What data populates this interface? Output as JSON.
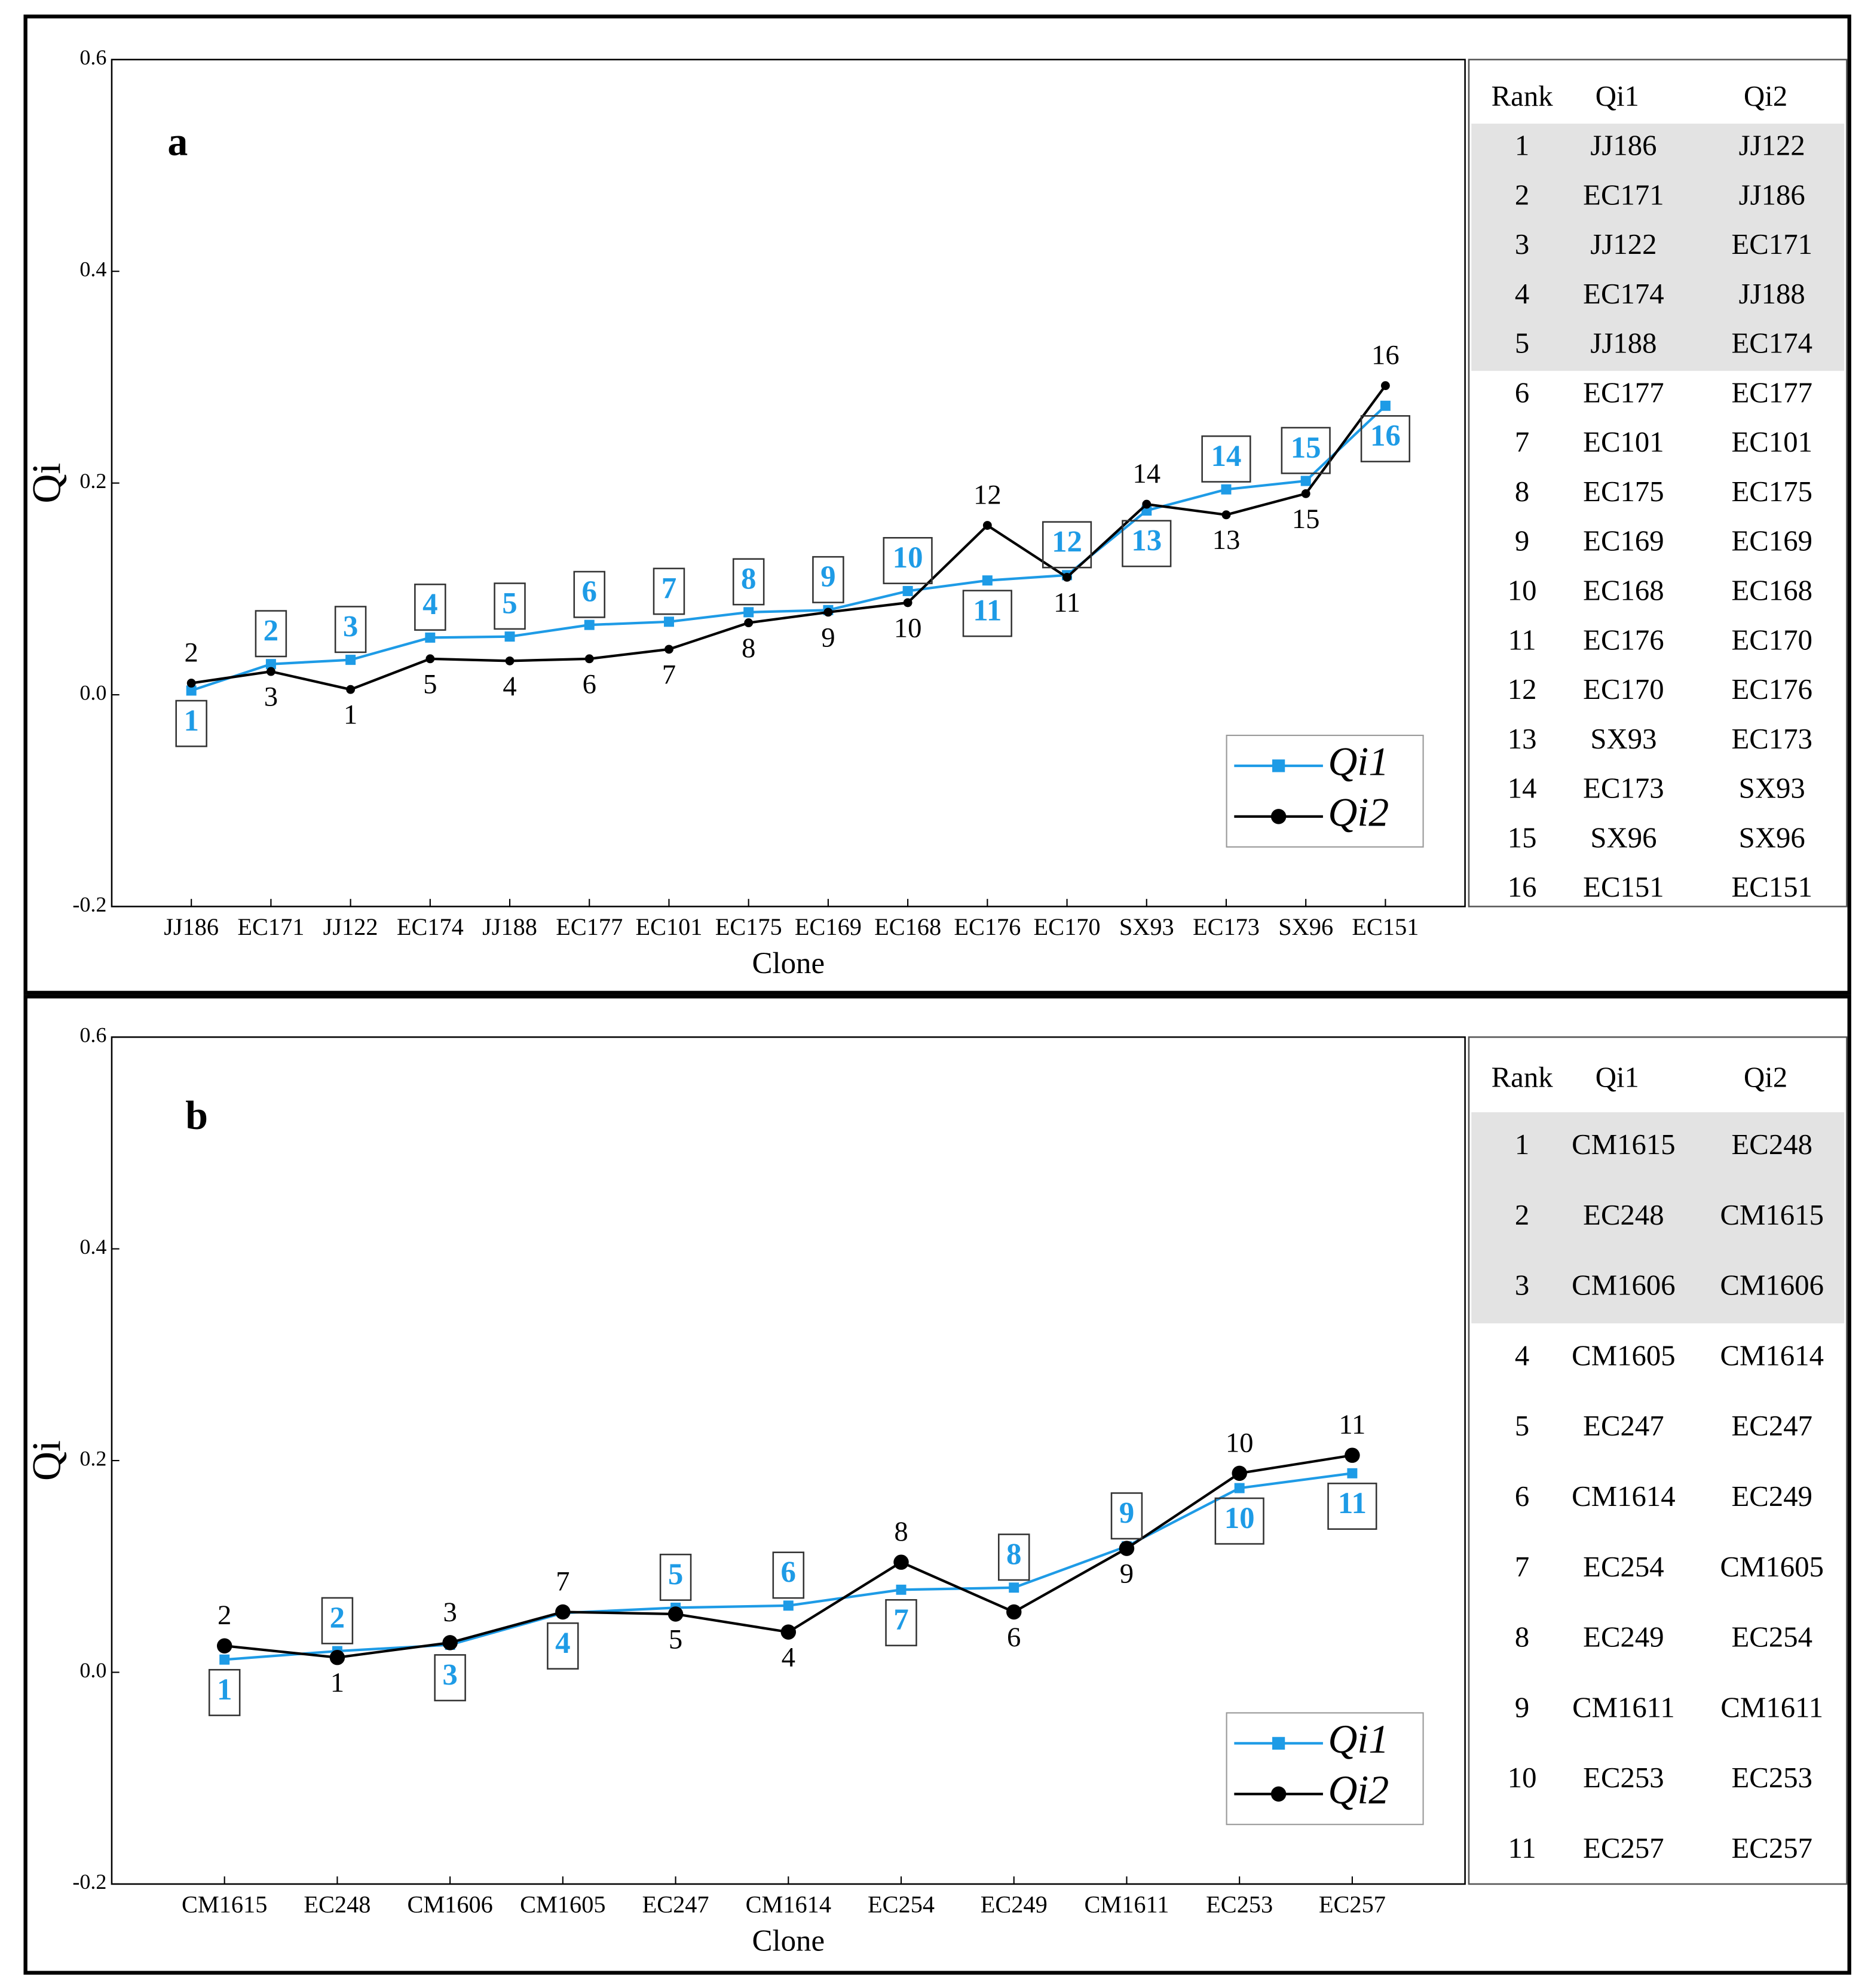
{
  "chart_data": [
    {
      "type": "line",
      "panel": "a",
      "xlabel": "Clone",
      "ylabel": "Qi",
      "categories": [
        "JJ186",
        "EC171",
        "JJ122",
        "EC174",
        "JJ188",
        "EC177",
        "EC101",
        "EC175",
        "EC169",
        "EC168",
        "EC176",
        "EC170",
        "SX93",
        "EC173",
        "SX96",
        "EC151"
      ],
      "series": [
        {
          "name": "Qi1",
          "color": "#1e9be6",
          "marker": "square",
          "values": [
            0.004,
            0.029,
            0.033,
            0.054,
            0.055,
            0.066,
            0.069,
            0.078,
            0.08,
            0.098,
            0.108,
            0.113,
            0.174,
            0.194,
            0.202,
            0.273
          ],
          "ranks": [
            1,
            2,
            3,
            4,
            5,
            6,
            7,
            8,
            9,
            10,
            11,
            12,
            13,
            14,
            15,
            16
          ]
        },
        {
          "name": "Qi2",
          "color": "#000000",
          "marker": "circle",
          "values": [
            0.011,
            0.022,
            0.005,
            0.034,
            0.032,
            0.034,
            0.043,
            0.068,
            0.078,
            0.087,
            0.16,
            0.111,
            0.18,
            0.17,
            0.19,
            0.292
          ],
          "ranks": [
            2,
            3,
            1,
            5,
            4,
            6,
            7,
            8,
            9,
            10,
            12,
            11,
            14,
            13,
            15,
            16
          ]
        }
      ],
      "ylim": [
        -0.2,
        0.6
      ],
      "yticks": [
        -0.2,
        {
          "value": 0,
          "label": "0.0"
        },
        0.2,
        0.4,
        0.6
      ],
      "legend": "lower right",
      "table": {
        "header": [
          "Rank",
          "Qi1",
          "Qi2"
        ],
        "highlight_rows": 5,
        "rows": [
          [
            1,
            "JJ186",
            "JJ122"
          ],
          [
            2,
            "EC171",
            "JJ186"
          ],
          [
            3,
            "JJ122",
            "EC171"
          ],
          [
            4,
            "EC174",
            "JJ188"
          ],
          [
            5,
            "JJ188",
            "EC174"
          ],
          [
            6,
            "EC177",
            "EC177"
          ],
          [
            7,
            "EC101",
            "EC101"
          ],
          [
            8,
            "EC175",
            "EC175"
          ],
          [
            9,
            "EC169",
            "EC169"
          ],
          [
            10,
            "EC168",
            "EC168"
          ],
          [
            11,
            "EC176",
            "EC170"
          ],
          [
            12,
            "EC170",
            "EC176"
          ],
          [
            13,
            "SX93",
            "EC173"
          ],
          [
            14,
            "EC173",
            "SX93"
          ],
          [
            15,
            "SX96",
            "SX96"
          ],
          [
            16,
            "EC151",
            "EC151"
          ]
        ]
      }
    },
    {
      "type": "line",
      "panel": "b",
      "xlabel": "Clone",
      "ylabel": "Qi",
      "categories": [
        "CM1615",
        "EC248",
        "CM1606",
        "CM1605",
        "EC247",
        "CM1614",
        "EC254",
        "EC249",
        "CM1611",
        "EC253",
        "EC257"
      ],
      "series": [
        {
          "name": "Qi1",
          "color": "#1e9be6",
          "marker": "square",
          "values": [
            0.012,
            0.02,
            0.026,
            0.056,
            0.061,
            0.063,
            0.078,
            0.08,
            0.119,
            0.174,
            0.188
          ],
          "ranks": [
            1,
            2,
            3,
            4,
            5,
            6,
            7,
            8,
            9,
            10,
            11
          ]
        },
        {
          "name": "Qi2",
          "color": "#000000",
          "marker": "circle",
          "values": [
            0.025,
            0.014,
            0.028,
            0.057,
            0.055,
            0.038,
            0.104,
            0.057,
            0.117,
            0.188,
            0.205
          ],
          "ranks": [
            2,
            1,
            3,
            7,
            5,
            4,
            8,
            6,
            9,
            10,
            11
          ]
        }
      ],
      "ylim": [
        -0.2,
        0.6
      ],
      "yticks": [
        -0.2,
        {
          "value": 0,
          "label": "0.0"
        },
        0.2,
        0.4,
        0.6
      ],
      "legend": "lower right",
      "table": {
        "header": [
          "Rank",
          "Qi1",
          "Qi2"
        ],
        "highlight_rows": 3,
        "rows": [
          [
            1,
            "CM1615",
            "EC248"
          ],
          [
            2,
            "EC248",
            "CM1615"
          ],
          [
            3,
            "CM1606",
            "CM1606"
          ],
          [
            4,
            "CM1605",
            "CM1614"
          ],
          [
            5,
            "EC247",
            "EC247"
          ],
          [
            6,
            "CM1614",
            "EC249"
          ],
          [
            7,
            "EC254",
            "CM1605"
          ],
          [
            8,
            "EC249",
            "EC254"
          ],
          [
            9,
            "CM1611",
            "CM1611"
          ],
          [
            10,
            "EC253",
            "EC253"
          ],
          [
            11,
            "EC257",
            "EC257"
          ]
        ]
      }
    }
  ]
}
